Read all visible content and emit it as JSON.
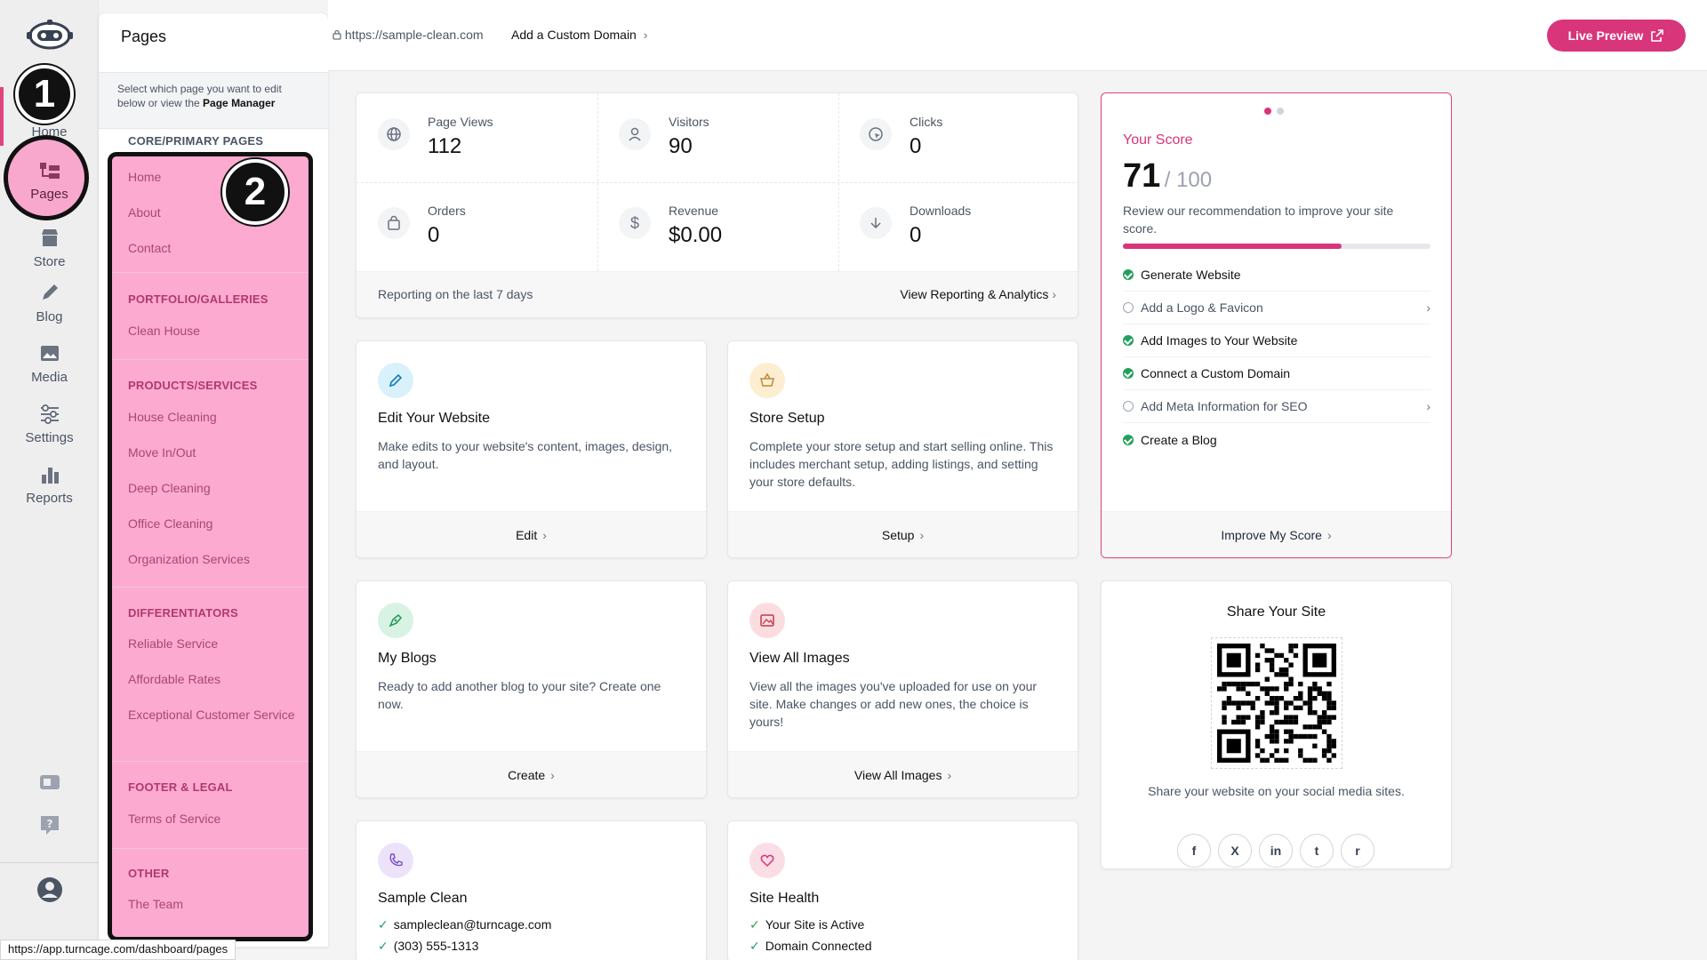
{
  "rail": {
    "items": [
      {
        "label": "Home",
        "icon": "home-icon"
      },
      {
        "label": "Pages",
        "icon": "pages-icon"
      },
      {
        "label": "Store",
        "icon": "store-icon"
      },
      {
        "label": "Blog",
        "icon": "pencil-icon"
      },
      {
        "label": "Media",
        "icon": "image-icon"
      },
      {
        "label": "Settings",
        "icon": "sliders-icon"
      },
      {
        "label": "Reports",
        "icon": "bar-chart-icon"
      }
    ],
    "badge1": "1",
    "badge2": "2",
    "accent": "#e2447f"
  },
  "pages_panel": {
    "title": "Pages",
    "hint_prefix": "Select which page you want to edit below or view the ",
    "hint_link": "Page Manager",
    "core_head": "CORE/PRIMARY PAGES",
    "core_items": [
      "Home",
      "About",
      "Contact"
    ],
    "sections": [
      {
        "head": "PORTFOLIO/GALLERIES",
        "items": [
          "Clean House"
        ]
      },
      {
        "head": "PRODUCTS/SERVICES",
        "items": [
          "House Cleaning",
          "Move In/Out",
          "Deep Cleaning",
          "Office Cleaning",
          "Organization Services"
        ]
      },
      {
        "head": "DIFFERENTIATORS",
        "items": [
          "Reliable Service",
          "Affordable Rates",
          "Exceptional Customer Service"
        ]
      },
      {
        "head": "FOOTER & LEGAL",
        "items": [
          "Terms of Service"
        ]
      },
      {
        "head": "OTHER",
        "items": [
          "The Team"
        ]
      }
    ]
  },
  "topbar": {
    "url": "https://sample-clean.com",
    "custom_domain": "Add a Custom Domain",
    "live_preview": "Live Preview"
  },
  "stats": {
    "items": [
      {
        "label": "Page Views",
        "value": "112",
        "icon": "globe-icon"
      },
      {
        "label": "Visitors",
        "value": "90",
        "icon": "user-icon"
      },
      {
        "label": "Clicks",
        "value": "0",
        "icon": "cursor-icon"
      },
      {
        "label": "Orders",
        "value": "0",
        "icon": "bag-icon"
      },
      {
        "label": "Revenue",
        "value": "$0.00",
        "icon": "dollar-icon"
      },
      {
        "label": "Downloads",
        "value": "0",
        "icon": "download-icon"
      }
    ],
    "reporting": "Reporting on the last 7 days",
    "view_reporting": "View Reporting & Analytics"
  },
  "features": [
    {
      "title": "Edit Your Website",
      "desc": "Make edits to your website's content, images, design, and layout.",
      "action": "Edit",
      "icon": "pencil-icon",
      "color": "#d9f1fb"
    },
    {
      "title": "Store Setup",
      "desc": "Complete your store setup and start selling online. This includes merchant setup, adding listings, and setting your store defaults.",
      "action": "Setup",
      "icon": "basket-icon",
      "color": "#fdeed2"
    },
    {
      "title": "My Blogs",
      "desc": "Ready to add another blog to your site? Create one now.",
      "action": "Create",
      "icon": "pen-nib-icon",
      "color": "#d8f3e3"
    },
    {
      "title": "View All Images",
      "desc": "View all the images you've uploaded for use on your site. Make changes or add new ones, the choice is yours!",
      "action": "View All Images",
      "icon": "image-icon",
      "color": "#fbdde0"
    }
  ],
  "contact": {
    "title": "Sample Clean",
    "email": "sampleclean@turncage.com",
    "phone": "(303) 555-1313"
  },
  "health": {
    "title": "Site Health",
    "items": [
      "Your Site is Active",
      "Domain Connected"
    ]
  },
  "score": {
    "title": "Your Score",
    "value": "71",
    "max": "/ 100",
    "progress": 0.71,
    "desc": "Review our recommendation to improve your site score.",
    "items": [
      {
        "label": "Generate Website",
        "done": true
      },
      {
        "label": "Add a Logo & Favicon",
        "done": false
      },
      {
        "label": "Add Images to Your Website",
        "done": true
      },
      {
        "label": "Connect a Custom Domain",
        "done": true
      },
      {
        "label": "Add Meta Information for SEO",
        "done": false
      },
      {
        "label": "Create a Blog",
        "done": true
      }
    ],
    "improve": "Improve My Score",
    "color": "#d8357a"
  },
  "share": {
    "title": "Share Your Site",
    "desc": "Share your website on your social media sites.",
    "socials": [
      "f",
      "X",
      "in",
      "t",
      "r"
    ]
  },
  "status_url": "https://app.turncage.com/dashboard/pages"
}
